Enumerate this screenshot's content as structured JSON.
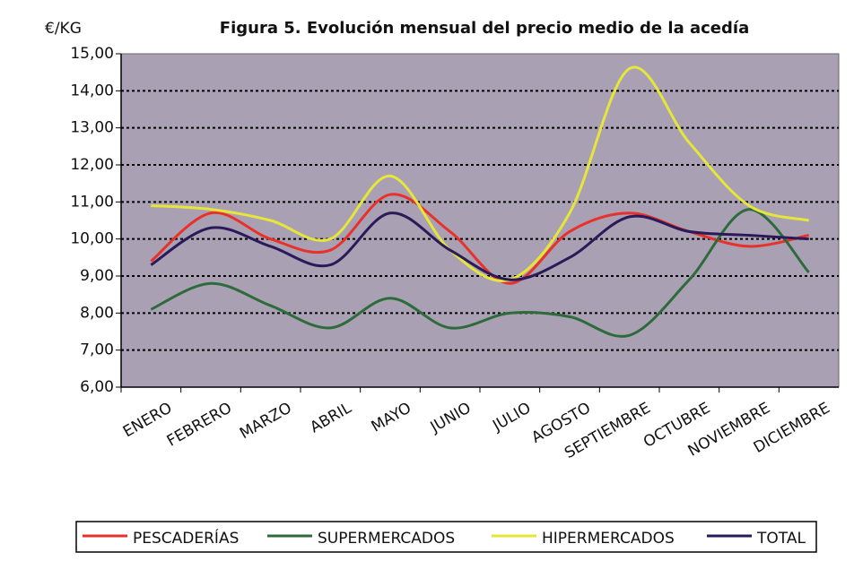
{
  "chart_data": {
    "type": "line",
    "title": "Figura 5. Evolución mensual del precio medio de la acedía",
    "y_label": "€/KG",
    "categories": [
      "ENERO",
      "FEBRERO",
      "MARZO",
      "ABRIL",
      "MAYO",
      "JUNIO",
      "JULIO",
      "AGOSTO",
      "SEPTIEMBRE",
      "OCTUBRE",
      "NOVIEMBRE",
      "DICIEMBRE"
    ],
    "series": [
      {
        "name": "PESCADERÍAS",
        "color": "#e8312a",
        "values": [
          9.4,
          10.7,
          10.0,
          9.7,
          11.2,
          10.2,
          8.8,
          10.2,
          10.7,
          10.2,
          9.8,
          10.1
        ]
      },
      {
        "name": "SUPERMERCADOS",
        "color": "#2e6b3a",
        "values": [
          8.1,
          8.8,
          8.2,
          7.6,
          8.4,
          7.6,
          8.0,
          7.9,
          7.4,
          8.9,
          10.8,
          9.1
        ]
      },
      {
        "name": "HIPERMERCADOS",
        "color": "#e6e63a",
        "values": [
          10.9,
          10.8,
          10.5,
          10.0,
          11.7,
          9.7,
          8.9,
          10.7,
          14.6,
          12.6,
          10.9,
          10.5
        ]
      },
      {
        "name": "TOTAL",
        "color": "#2a1a5a",
        "values": [
          9.3,
          10.3,
          9.8,
          9.3,
          10.7,
          9.7,
          8.9,
          9.5,
          10.6,
          10.2,
          10.1,
          10.0
        ]
      }
    ],
    "ylim": [
      6,
      15
    ],
    "yticks": [
      {
        "value": 6,
        "label": "6,00"
      },
      {
        "value": 7,
        "label": "7,00"
      },
      {
        "value": 8,
        "label": "8,00"
      },
      {
        "value": 9,
        "label": "9,00"
      },
      {
        "value": 10,
        "label": "10,00"
      },
      {
        "value": 11,
        "label": "11,00"
      },
      {
        "value": 12,
        "label": "12,00"
      },
      {
        "value": 13,
        "label": "13,00"
      },
      {
        "value": 14,
        "label": "14,00"
      },
      {
        "value": 15,
        "label": "15,00"
      }
    ],
    "grid": true,
    "legend": "bottom",
    "plot_background": "#a9a0b4"
  }
}
